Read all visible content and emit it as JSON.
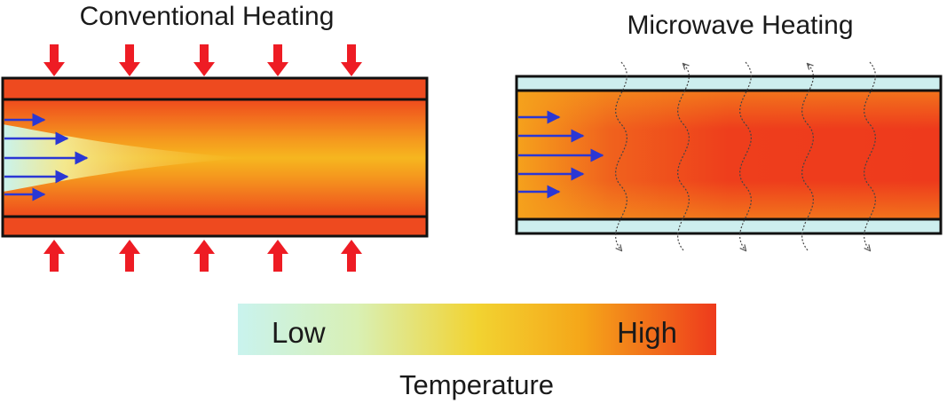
{
  "panels": {
    "conventional": {
      "title": "Conventional Heating"
    },
    "microwave": {
      "title": "Microwave Heating"
    }
  },
  "legend": {
    "low_label": "Low",
    "high_label": "High",
    "caption": "Temperature"
  },
  "colors": {
    "low": "#c9f3ee",
    "mid": "#f5b21a",
    "high": "#ee3a1c",
    "flow_arrow": "#2a37d4",
    "heat_arrow": "#ee1c24",
    "wall_outline": "#111111",
    "microwave_vessel": "#cdeeee"
  }
}
